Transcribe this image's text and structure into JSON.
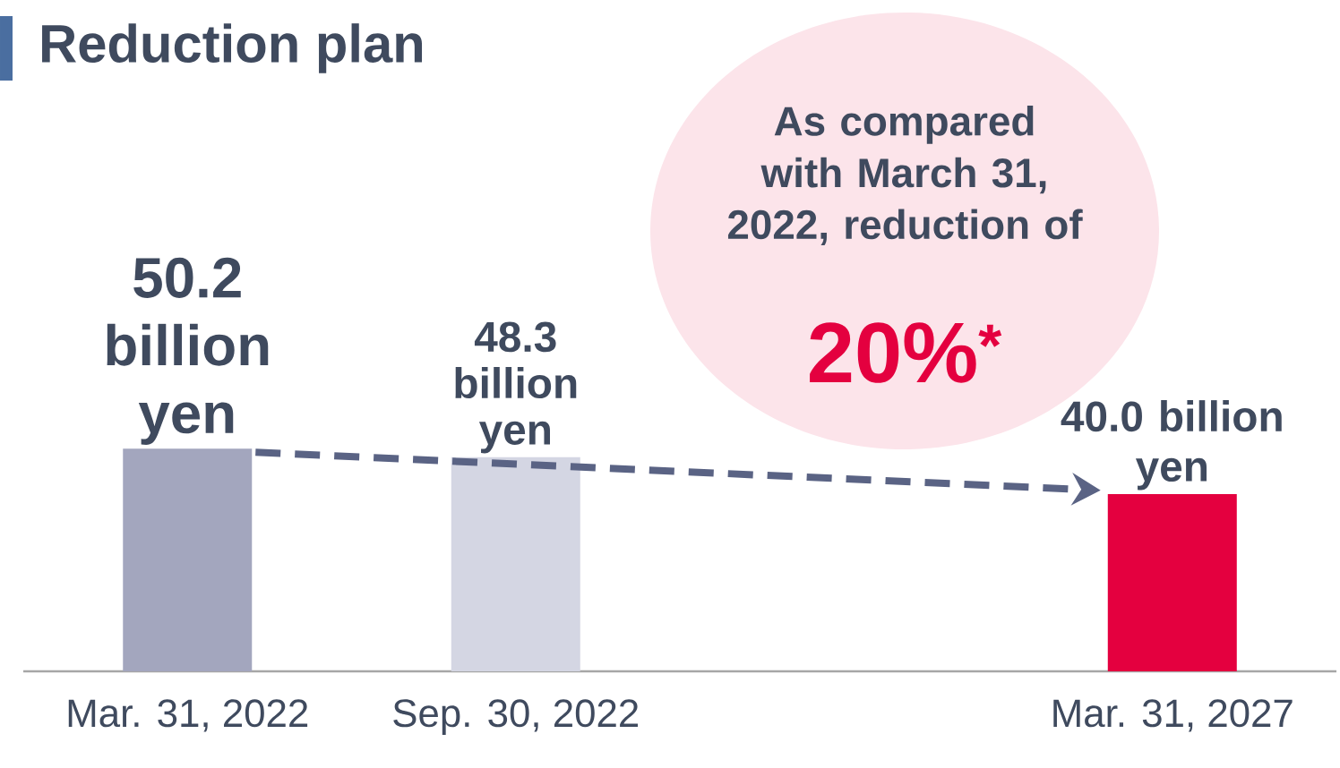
{
  "chart_data": {
    "type": "bar",
    "title": "Reduction plan",
    "categories": [
      "Mar. 31, 2022",
      "Sep. 30, 2022",
      null,
      "Mar. 31, 2027"
    ],
    "values": [
      50.2,
      48.3,
      null,
      40.0
    ],
    "colors": [
      "#a3a6be",
      "#d4d6e3",
      "#a3a6be",
      "#e4003f"
    ],
    "value_labels": [
      "50.2 billion yen",
      "48.3 billion yen",
      null,
      "40.0 billion yen"
    ],
    "tick_labels": "x",
    "annotations": [
      "As compared with March 31, 2022, reduction of",
      "20%$^{*}$"
    ]
  }
}
